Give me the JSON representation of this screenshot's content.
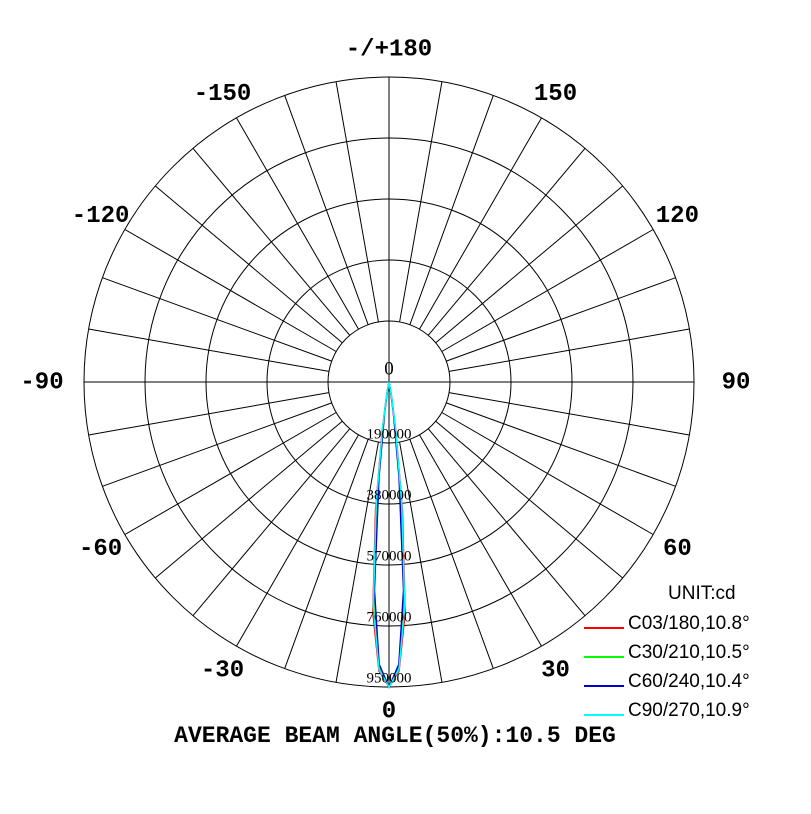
{
  "chart_data": {
    "type": "polar",
    "title": "AVERAGE BEAM ANGLE(50%):10.5 DEG",
    "unit_label": "UNIT:cd",
    "rlim": [
      0,
      950000
    ],
    "rticks": [
      0,
      190000,
      380000,
      570000,
      760000,
      950000
    ],
    "angle_ticks": [
      {
        "value": 180,
        "label": "-/+180"
      },
      -150,
      -120,
      -90,
      -60,
      -30,
      0,
      30,
      60,
      90,
      120,
      150
    ],
    "x": [
      -10,
      -8,
      -6,
      -4,
      -2,
      0,
      2,
      4,
      6,
      8,
      10
    ],
    "series": [
      {
        "name": "C03/180,10.8°",
        "color": "#ff0000",
        "values": [
          50000,
          150000,
          400000,
          720000,
          900000,
          950000,
          900000,
          720000,
          400000,
          150000,
          50000
        ]
      },
      {
        "name": "C30/210,10.5°",
        "color": "#00ff00",
        "values": [
          40000,
          120000,
          350000,
          690000,
          890000,
          950000,
          890000,
          690000,
          350000,
          120000,
          40000
        ]
      },
      {
        "name": "C60/240,10.4°",
        "color": "#0000cc",
        "values": [
          30000,
          100000,
          300000,
          650000,
          880000,
          950000,
          880000,
          650000,
          300000,
          100000,
          30000
        ]
      },
      {
        "name": "C90/270,10.9°",
        "color": "#00ffff",
        "values": [
          45000,
          140000,
          380000,
          700000,
          895000,
          950000,
          895000,
          700000,
          380000,
          140000,
          45000
        ]
      }
    ]
  }
}
